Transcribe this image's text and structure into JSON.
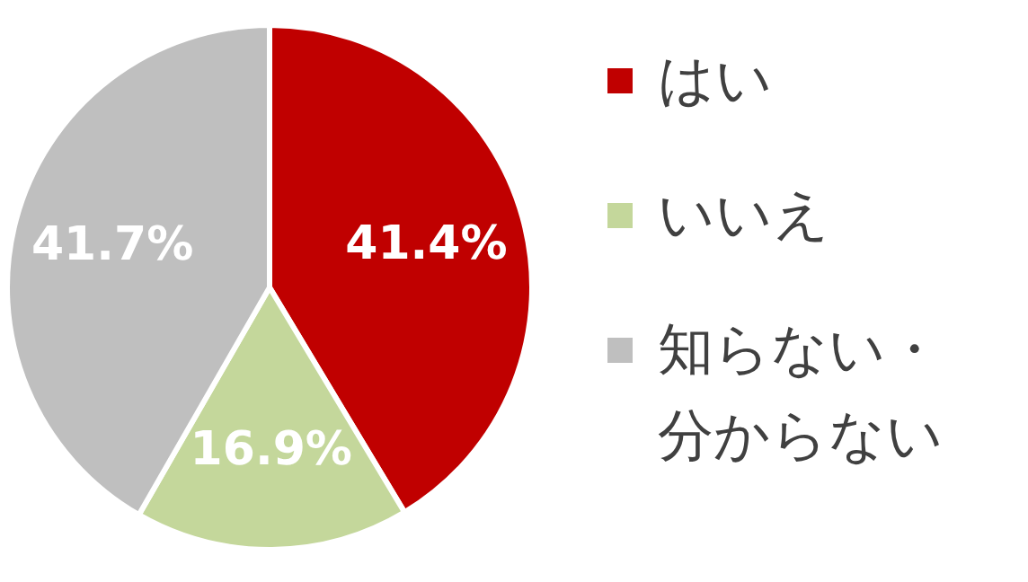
{
  "chart_data": {
    "type": "pie",
    "categories": [
      "はい",
      "いいえ",
      "知らない・分からない"
    ],
    "values": [
      41.4,
      16.9,
      41.7
    ],
    "colors": [
      "#c00000",
      "#c4d79b",
      "#bfbfbf"
    ],
    "value_labels": [
      "41.4%",
      "16.9%",
      "41.7%"
    ],
    "legend": "right"
  }
}
